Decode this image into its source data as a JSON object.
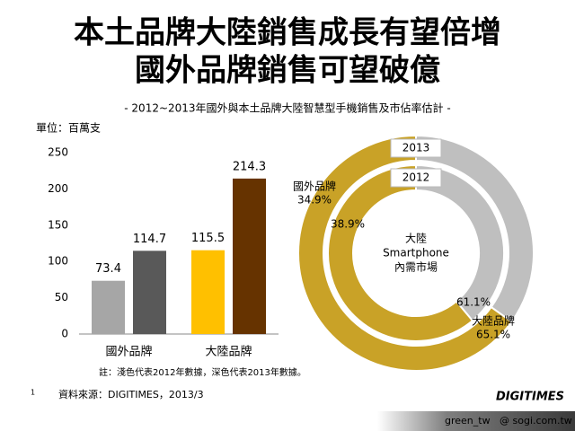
{
  "title": [
    "本土品牌大陸銷售成長有望倍增",
    "國外品牌銷售可望破億"
  ],
  "subtitle": "- 2012~2013年國外與本土品牌大陸智慧型手機銷售及市佔率估計 -",
  "unit": "單位：百萬支",
  "note": "註：淺色代表2012年數據，深色代表2013年數據。",
  "source": "資料來源：DIGITIMES，2013/3",
  "page_number": "1",
  "logo": "DIGITIMES",
  "footer_left": "green_tw",
  "footer_right": "@ sogi.com.tw",
  "chart_data": [
    {
      "type": "bar",
      "categories": [
        "國外品牌",
        "大陸品牌"
      ],
      "series": [
        {
          "values": [
            73.4,
            115.5
          ],
          "colors": [
            "#a6a6a6",
            "#ffc000"
          ]
        },
        {
          "values": [
            114.7,
            214.3
          ],
          "colors": [
            "#595959",
            "#663300"
          ]
        }
      ],
      "ylim": [
        0,
        250
      ],
      "yticks": [
        0,
        50,
        100,
        150,
        200,
        250
      ],
      "grid": false
    },
    {
      "type": "donut",
      "categories": [
        "國外品牌",
        "大陸品牌"
      ],
      "colors": [
        "#bfbfbf",
        "#c9a227"
      ],
      "center_label": [
        "大陸",
        "Smartphone",
        "內需市場"
      ],
      "series": [
        {
          "name": "2012",
          "values": [
            38.9,
            61.1
          ],
          "value_labels": [
            "38.9%",
            "61.1%"
          ]
        },
        {
          "name": "2013",
          "values": [
            34.9,
            65.1
          ],
          "value_labels": [
            "34.9%",
            "65.1%"
          ]
        }
      ]
    }
  ]
}
